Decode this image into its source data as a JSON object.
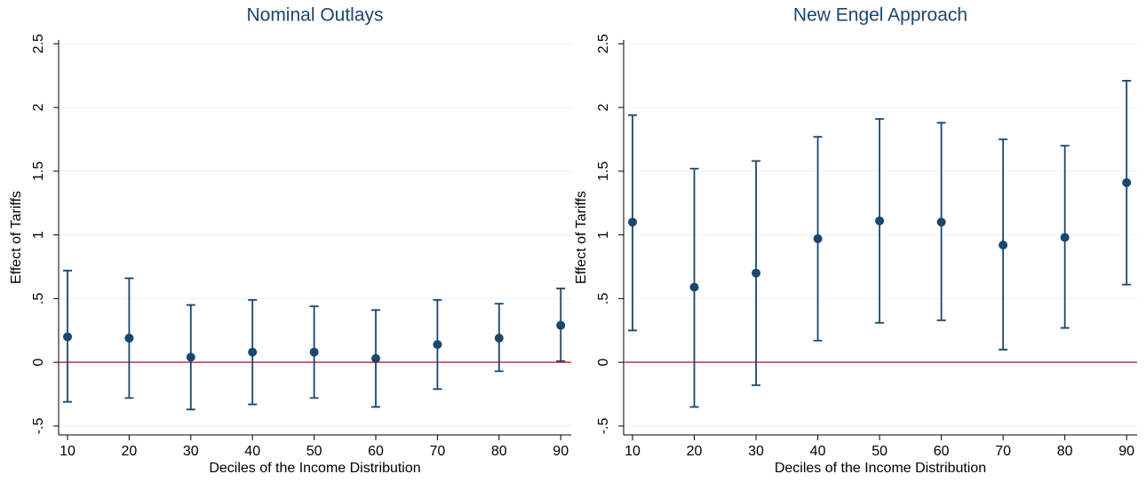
{
  "chart_data": [
    {
      "type": "errorbar",
      "title": "Nominal Outlays",
      "x_label": "Deciles of the Income Distribution",
      "y_label": "Effect of Tariffs",
      "x": [
        10,
        20,
        30,
        40,
        50,
        60,
        70,
        80,
        90
      ],
      "series": [
        {
          "color": "#1a476f",
          "values": [
            0.2,
            0.19,
            0.04,
            0.08,
            0.08,
            0.03,
            0.14,
            0.19,
            0.29
          ],
          "lower": [
            -0.31,
            -0.28,
            -0.37,
            -0.33,
            -0.28,
            -0.35,
            -0.21,
            -0.07,
            0.01
          ],
          "upper": [
            0.72,
            0.66,
            0.45,
            0.49,
            0.44,
            0.41,
            0.49,
            0.46,
            0.58
          ]
        }
      ],
      "hline": 0,
      "hline_color": "#c0334d",
      "grid": true,
      "xlim": [
        8.56,
        91.7
      ],
      "xticks": [
        10,
        20,
        30,
        40,
        50,
        60,
        70,
        80,
        90
      ],
      "ylim": [
        -0.57,
        2.53
      ],
      "yticks": [
        {
          "value": -0.5,
          "label": "-.5"
        },
        0,
        {
          "value": 0.5,
          "label": ".5"
        },
        1,
        1.5,
        2,
        2.5
      ]
    },
    {
      "type": "errorbar",
      "title": "New Engel Approach",
      "x_label": "Deciles of the Income Distribution",
      "y_label": "Effect of Tariffs",
      "x": [
        10,
        20,
        30,
        40,
        50,
        60,
        70,
        80,
        90
      ],
      "series": [
        {
          "color": "#1a476f",
          "values": [
            1.1,
            0.59,
            0.7,
            0.97,
            1.11,
            1.1,
            0.92,
            0.98,
            1.41
          ],
          "lower": [
            0.25,
            -0.35,
            -0.18,
            0.17,
            0.31,
            0.33,
            0.1,
            0.27,
            0.61
          ],
          "upper": [
            1.94,
            1.52,
            1.58,
            1.77,
            1.91,
            1.88,
            1.75,
            1.7,
            2.21
          ]
        }
      ],
      "hline": 0,
      "hline_color": "#c0334d",
      "grid": true,
      "xlim": [
        8.56,
        91.7
      ],
      "xticks": [
        10,
        20,
        30,
        40,
        50,
        60,
        70,
        80,
        90
      ],
      "ylim": [
        -0.57,
        2.53
      ],
      "yticks": [
        {
          "value": -0.5,
          "label": "-.5"
        },
        0,
        {
          "value": 0.5,
          "label": ".5"
        },
        1,
        1.5,
        2,
        2.5
      ]
    }
  ]
}
